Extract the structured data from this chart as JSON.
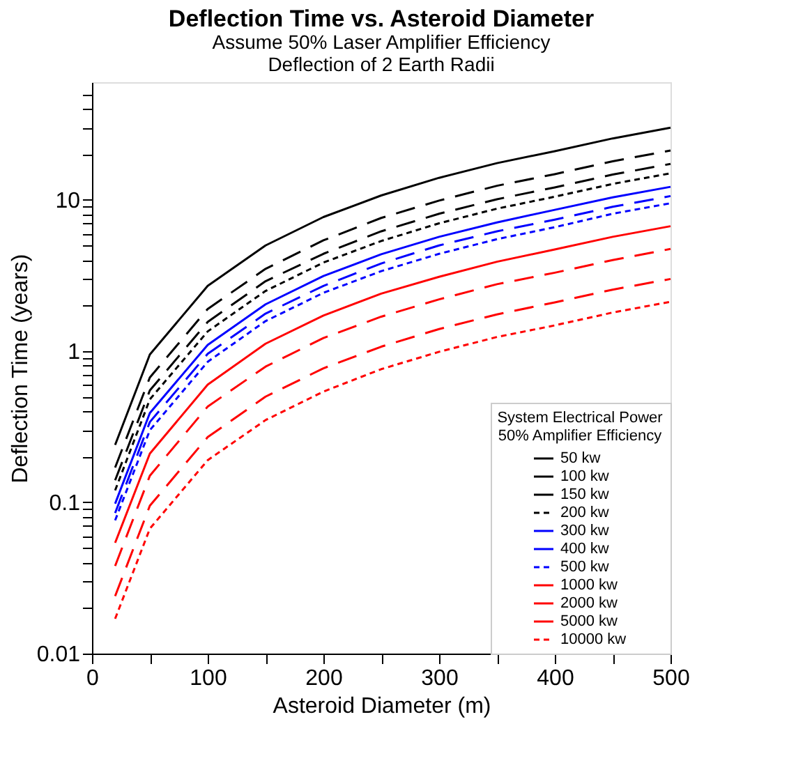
{
  "chart_data": {
    "type": "line",
    "title": "Deflection Time vs. Asteroid Diameter",
    "subtitle": "Assume 50% Laser Amplifier Efficiency\nDeflection of 2 Earth Radii",
    "xlabel": "Asteroid Diameter (m)",
    "ylabel": "Deflection Time (years)",
    "legend_title": "System Electrical Power\n50% Amplifier Efficiency",
    "legend": "bottom right",
    "log": "y",
    "grid": false,
    "marker": "none",
    "x": [
      20,
      50,
      100,
      150,
      200,
      250,
      300,
      350,
      400,
      450,
      500
    ],
    "xlim": [
      0,
      500
    ],
    "xticks": [
      0,
      {
        "value": 50,
        "label": null
      },
      100,
      {
        "value": 150,
        "label": null
      },
      200,
      {
        "value": 250,
        "label": null
      },
      300,
      {
        "value": 350,
        "label": null
      },
      400,
      {
        "value": 450,
        "label": null
      },
      500
    ],
    "ylim": [
      0.01,
      60
    ],
    "yticks": [
      0.01,
      {
        "value": 0.02,
        "label": null
      },
      {
        "value": 0.03,
        "label": null
      },
      {
        "value": 0.04,
        "label": null
      },
      {
        "value": 0.05,
        "label": null
      },
      {
        "value": 0.06,
        "label": null
      },
      {
        "value": 0.07,
        "label": null
      },
      {
        "value": 0.08,
        "label": null
      },
      {
        "value": 0.09,
        "label": null
      },
      0.1,
      {
        "value": 0.2,
        "label": null
      },
      {
        "value": 0.3,
        "label": null
      },
      {
        "value": 0.4,
        "label": null
      },
      {
        "value": 0.5,
        "label": null
      },
      {
        "value": 0.6,
        "label": null
      },
      {
        "value": 0.7,
        "label": null
      },
      {
        "value": 0.8,
        "label": null
      },
      {
        "value": 0.9,
        "label": null
      },
      1,
      {
        "value": 2,
        "label": null
      },
      {
        "value": 3,
        "label": null
      },
      {
        "value": 4,
        "label": null
      },
      {
        "value": 5,
        "label": null
      },
      {
        "value": 6,
        "label": null
      },
      {
        "value": 7,
        "label": null
      },
      {
        "value": 8,
        "label": null
      },
      {
        "value": 9,
        "label": null
      },
      10,
      {
        "value": 20,
        "label": null
      },
      {
        "value": 30,
        "label": null
      },
      {
        "value": 40,
        "label": null
      },
      {
        "value": 50,
        "label": null
      }
    ],
    "series": [
      {
        "name": "50 kw",
        "color": "#000000",
        "line_style": "solid",
        "values": [
          0.24,
          0.95,
          2.7,
          5.0,
          7.7,
          10.7,
          14,
          17.5,
          21,
          25.5,
          30
        ]
      },
      {
        "name": "100 kw",
        "color": "#000000",
        "line_style": "dashed",
        "values": [
          0.17,
          0.67,
          1.9,
          3.5,
          5.4,
          7.6,
          9.9,
          12.4,
          14.8,
          18,
          21.2
        ]
      },
      {
        "name": "150 kw",
        "color": "#000000",
        "line_style": "dashed",
        "values": [
          0.14,
          0.55,
          1.56,
          2.9,
          4.4,
          6.2,
          8.1,
          10.1,
          12.1,
          14.7,
          17.3
        ]
      },
      {
        "name": "200 kw",
        "color": "#000000",
        "line_style": "dotted",
        "values": [
          0.12,
          0.48,
          1.35,
          2.5,
          3.85,
          5.35,
          7,
          8.75,
          10.5,
          12.75,
          15
        ]
      },
      {
        "name": "300 kw",
        "color": "#0000ff",
        "line_style": "solid",
        "values": [
          0.098,
          0.39,
          1.1,
          2.04,
          3.14,
          4.37,
          5.7,
          7.1,
          8.6,
          10.4,
          12.2
        ]
      },
      {
        "name": "400 kw",
        "color": "#0000ff",
        "line_style": "dashed",
        "values": [
          0.085,
          0.34,
          0.96,
          1.77,
          2.7,
          3.8,
          5.0,
          6.2,
          7.4,
          9.0,
          10.6
        ]
      },
      {
        "name": "500 kw",
        "color": "#0000ff",
        "line_style": "dotted",
        "values": [
          0.076,
          0.3,
          0.85,
          1.58,
          2.43,
          3.38,
          4.4,
          5.5,
          6.6,
          8.1,
          9.5
        ]
      },
      {
        "name": "1000 kw",
        "color": "#ff0000",
        "line_style": "solid",
        "values": [
          0.054,
          0.21,
          0.6,
          1.12,
          1.72,
          2.4,
          3.1,
          3.9,
          4.7,
          5.7,
          6.7
        ]
      },
      {
        "name": "2000 kw",
        "color": "#ff0000",
        "line_style": "dashed",
        "values": [
          0.038,
          0.15,
          0.43,
          0.79,
          1.22,
          1.69,
          2.2,
          2.77,
          3.3,
          4.0,
          4.74
        ]
      },
      {
        "name": "5000 kw",
        "color": "#ff0000",
        "line_style": "dashed",
        "values": [
          0.024,
          0.095,
          0.27,
          0.5,
          0.77,
          1.07,
          1.4,
          1.75,
          2.1,
          2.55,
          3.0
        ]
      },
      {
        "name": "10000 kw",
        "color": "#ff0000",
        "line_style": "dotted",
        "values": [
          0.017,
          0.067,
          0.19,
          0.35,
          0.54,
          0.76,
          0.99,
          1.24,
          1.48,
          1.8,
          2.12
        ]
      }
    ]
  }
}
